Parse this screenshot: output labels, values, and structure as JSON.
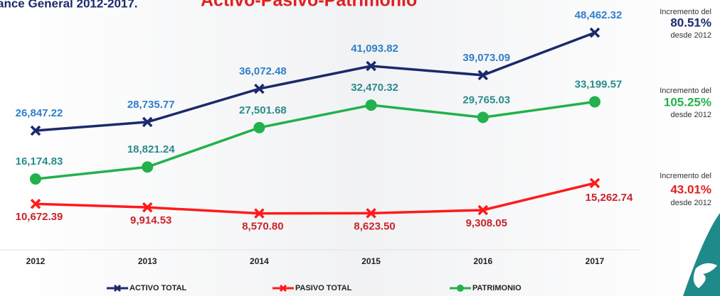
{
  "chart_data": {
    "type": "line",
    "title": "ance General 2012-2017.",
    "title_highlight": "Activo-Pasivo-Patrimonio",
    "categories": [
      "2012",
      "2013",
      "2014",
      "2015",
      "2016",
      "2017"
    ],
    "ylim": [
      0,
      54000
    ],
    "legend": "bottom",
    "series": [
      {
        "name": "ACTIVO TOTAL",
        "color": "#1b2a6b",
        "label_color": "#2f7fcc",
        "marker": "x",
        "label_side": "above",
        "values": [
          26847.22,
          28735.77,
          36072.48,
          41093.82,
          39073.09,
          48462.32
        ],
        "value_labels": [
          "26,847.22",
          "28,735.77",
          "36,072.48",
          "41,093.82",
          "39,073.09",
          "48,462.32"
        ]
      },
      {
        "name": "PASIVO TOTAL",
        "color": "#ff1a1a",
        "label_color": "#c8232b",
        "marker": "x",
        "label_side": "below",
        "values": [
          10672.39,
          9914.53,
          8570.8,
          8623.5,
          9308.05,
          15262.74
        ],
        "value_labels": [
          "10,672.39",
          "9,914.53",
          "8,570.80",
          "8,623.50",
          "9,308.05",
          "15,262.74"
        ]
      },
      {
        "name": "PATRIMONIO",
        "color": "#22b14c",
        "label_color": "#2a8c8c",
        "marker": "circle",
        "label_side": "above",
        "values": [
          16174.83,
          18821.24,
          27501.68,
          32470.32,
          29765.03,
          33199.57
        ],
        "value_labels": [
          "16,174.83",
          "18,821.24",
          "27,501.68",
          "32,470.32",
          "29,765.03",
          "33,199.57"
        ]
      }
    ],
    "annotations": [
      {
        "lines": [
          "Incremento del",
          "80.51%",
          "desde 2012"
        ],
        "color": "#1b2a6b"
      },
      {
        "lines": [
          "Incremento del",
          "105.25%",
          "desde 2012"
        ],
        "color": "#22b14c"
      },
      {
        "lines": [
          "Incremento del",
          "43.01%",
          "desde 2012"
        ],
        "color": "#e02020"
      }
    ]
  }
}
